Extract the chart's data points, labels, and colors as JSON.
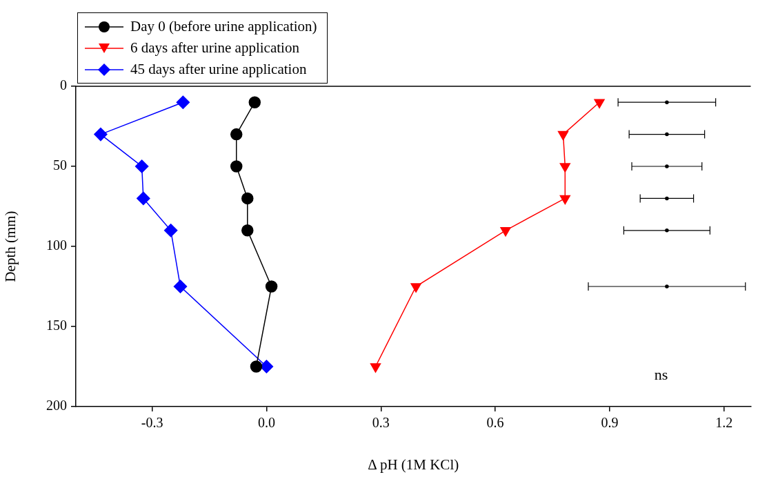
{
  "chart_data": {
    "type": "line",
    "xlabel": "Δ pH (1M KCl)",
    "ylabel": "Depth (mm)",
    "xlim": [
      -0.5,
      1.27
    ],
    "xticks": [
      -0.3,
      {
        "value": 0,
        "label": "0.0"
      },
      0.3,
      0.6,
      0.9,
      1.2
    ],
    "ylim": [
      200,
      0
    ],
    "yticks": [
      0,
      50,
      100,
      150,
      200
    ],
    "grid": false,
    "legend": "top left",
    "line_style": "solid",
    "series": [
      {
        "name": "Day 0 (before urine application)",
        "color": "#000000",
        "marker": "circle",
        "x": [
          -0.031,
          -0.079,
          -0.079,
          -0.05,
          -0.05,
          0.013,
          -0.027
        ],
        "values": [
          10,
          30,
          50,
          70,
          90,
          125,
          175
        ]
      },
      {
        "name": "6 days after urine application",
        "color": "#ff0000",
        "marker": "triangle",
        "x": [
          0.873,
          0.778,
          0.783,
          0.783,
          0.627,
          0.392,
          0.286
        ],
        "values": [
          10,
          30,
          50,
          70,
          90,
          125,
          175
        ]
      },
      {
        "name": "45 days after urine application",
        "color": "#0000ff",
        "marker": "diamond",
        "x": [
          -0.219,
          -0.435,
          -0.327,
          -0.323,
          -0.251,
          -0.226,
          0
        ],
        "values": [
          10,
          30,
          50,
          70,
          90,
          125,
          175
        ]
      },
      {
        "type": "scatter",
        "color": "#000000",
        "marker": "circle",
        "x": [
          1.05,
          1.05,
          1.05,
          1.05,
          1.05,
          1.05
        ],
        "values": [
          10,
          30,
          50,
          70,
          90,
          125
        ],
        "xerrors": [
          0.128,
          0.099,
          0.092,
          0.07,
          0.113,
          0.206
        ]
      }
    ],
    "annotations": [
      "ns"
    ]
  }
}
